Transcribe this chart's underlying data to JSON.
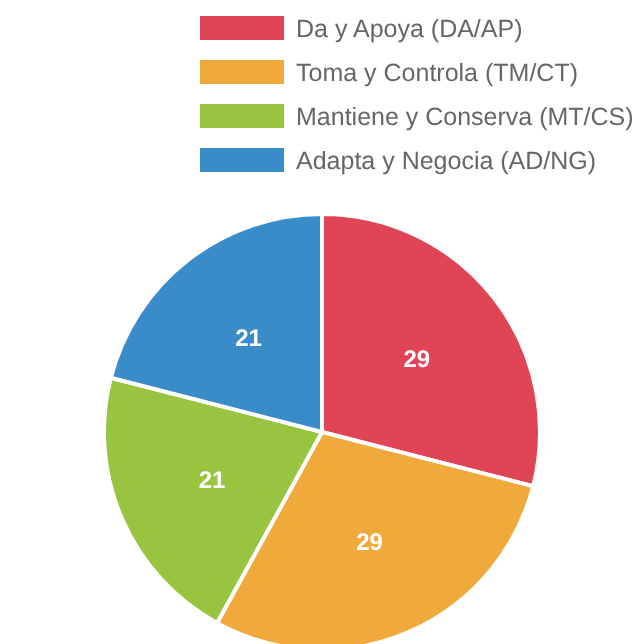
{
  "chart_data": {
    "type": "pie",
    "categories": [
      "Da y Apoya (DA/AP)",
      "Toma y Controla (TM/CT)",
      "Mantiene y Conserva (MT/CS)",
      "Adapta y Negocia (AD/NG)"
    ],
    "values": [
      29,
      29,
      21,
      21
    ],
    "colors": [
      "#e04556",
      "#f0a93b",
      "#98c43f",
      "#3a8cc8"
    ],
    "data_labels": true,
    "legend": "top"
  }
}
